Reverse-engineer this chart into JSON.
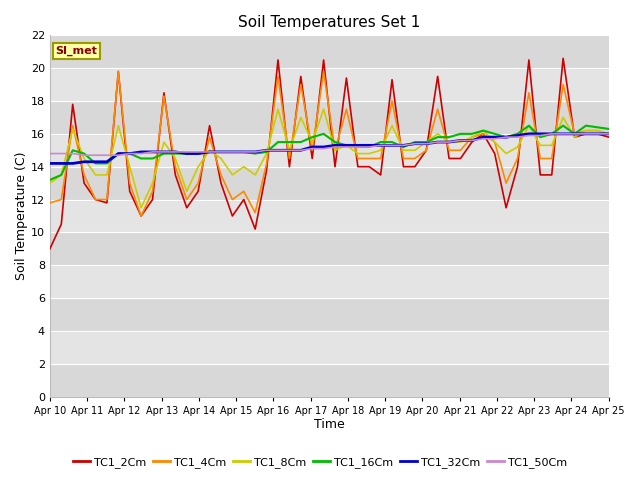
{
  "title": "Soil Temperatures Set 1",
  "xlabel": "Time",
  "ylabel": "Soil Temperature (C)",
  "ylim": [
    0,
    22
  ],
  "yticks": [
    0,
    2,
    4,
    6,
    8,
    10,
    12,
    14,
    16,
    18,
    20,
    22
  ],
  "annotation_text": "SI_met",
  "annotation_bg": "#ffffaa",
  "annotation_border": "#999900",
  "series_colors": {
    "TC1_2Cm": "#cc0000",
    "TC1_4Cm": "#ff8800",
    "TC1_8Cm": "#cccc00",
    "TC1_16Cm": "#00bb00",
    "TC1_32Cm": "#0000cc",
    "TC1_50Cm": "#cc88cc"
  },
  "line_widths": {
    "TC1_2Cm": 1.2,
    "TC1_4Cm": 1.2,
    "TC1_8Cm": 1.2,
    "TC1_16Cm": 1.5,
    "TC1_32Cm": 2.0,
    "TC1_50Cm": 1.2
  },
  "x_labels": [
    "Apr 10",
    "Apr 11",
    "Apr 12",
    "Apr 13",
    "Apr 14",
    "Apr 15",
    "Apr 16",
    "Apr 17",
    "Apr 18",
    "Apr 19",
    "Apr 20",
    "Apr 21",
    "Apr 22",
    "Apr 23",
    "Apr 24",
    "Apr 25"
  ],
  "TC1_2Cm": [
    9.0,
    10.5,
    17.8,
    13.0,
    12.0,
    11.8,
    19.8,
    12.5,
    11.0,
    12.0,
    18.5,
    13.5,
    11.5,
    12.5,
    16.5,
    13.0,
    11.0,
    12.0,
    10.2,
    13.8,
    20.5,
    14.0,
    19.5,
    14.5,
    20.5,
    14.0,
    19.4,
    14.0,
    14.0,
    13.5,
    19.3,
    14.0,
    14.0,
    15.0,
    19.5,
    14.5,
    14.5,
    15.5,
    16.0,
    14.8,
    11.5,
    14.0,
    20.5,
    13.5,
    13.5,
    20.6,
    15.8,
    16.0,
    16.0,
    15.8
  ],
  "TC1_4Cm": [
    11.8,
    12.0,
    16.5,
    13.5,
    12.0,
    12.0,
    19.8,
    13.0,
    11.0,
    12.5,
    18.3,
    14.0,
    12.0,
    13.0,
    15.8,
    13.5,
    12.0,
    12.5,
    11.2,
    14.2,
    19.5,
    14.5,
    19.0,
    15.0,
    19.8,
    15.0,
    17.5,
    14.5,
    14.5,
    14.5,
    18.0,
    14.5,
    14.5,
    15.0,
    17.5,
    15.0,
    15.0,
    15.8,
    16.0,
    15.5,
    13.0,
    14.5,
    18.5,
    14.5,
    14.5,
    19.0,
    16.0,
    16.2,
    16.2,
    16.0
  ],
  "TC1_8Cm": [
    13.0,
    13.5,
    16.3,
    14.5,
    13.5,
    13.5,
    16.5,
    14.0,
    11.5,
    13.0,
    15.5,
    14.5,
    12.5,
    14.0,
    15.0,
    14.5,
    13.5,
    14.0,
    13.5,
    14.8,
    17.5,
    15.0,
    17.0,
    15.5,
    17.5,
    15.0,
    15.3,
    14.8,
    14.8,
    15.0,
    16.5,
    15.0,
    15.0,
    15.5,
    16.0,
    15.5,
    15.5,
    15.8,
    16.2,
    15.5,
    14.8,
    15.2,
    16.5,
    15.3,
    15.3,
    17.0,
    15.8,
    16.2,
    16.2,
    16.0
  ],
  "TC1_16Cm": [
    13.2,
    13.5,
    15.0,
    14.8,
    14.2,
    14.2,
    14.8,
    14.8,
    14.5,
    14.5,
    14.8,
    14.8,
    14.8,
    14.8,
    14.9,
    14.9,
    14.9,
    14.9,
    14.8,
    14.9,
    15.5,
    15.5,
    15.5,
    15.8,
    16.0,
    15.5,
    15.3,
    15.2,
    15.2,
    15.5,
    15.5,
    15.2,
    15.5,
    15.5,
    15.8,
    15.8,
    16.0,
    16.0,
    16.2,
    16.0,
    15.8,
    16.0,
    16.5,
    15.8,
    16.0,
    16.5,
    16.0,
    16.5,
    16.4,
    16.3
  ],
  "TC1_32Cm": [
    14.2,
    14.2,
    14.2,
    14.3,
    14.3,
    14.3,
    14.8,
    14.8,
    14.9,
    14.9,
    14.9,
    14.9,
    14.8,
    14.8,
    14.9,
    14.9,
    14.9,
    14.9,
    14.9,
    15.0,
    15.0,
    15.0,
    15.0,
    15.2,
    15.2,
    15.3,
    15.3,
    15.3,
    15.3,
    15.3,
    15.3,
    15.3,
    15.4,
    15.4,
    15.5,
    15.5,
    15.6,
    15.6,
    15.8,
    15.8,
    15.8,
    15.9,
    16.0,
    16.0,
    16.0,
    16.0,
    16.0,
    16.0,
    16.0,
    16.0
  ],
  "TC1_50Cm": [
    14.8,
    14.8,
    14.8,
    14.7,
    14.7,
    14.7,
    14.7,
    14.8,
    14.8,
    14.9,
    14.9,
    14.9,
    14.9,
    14.9,
    14.9,
    14.9,
    14.9,
    14.9,
    14.9,
    15.0,
    15.0,
    15.0,
    15.0,
    15.1,
    15.1,
    15.2,
    15.2,
    15.2,
    15.2,
    15.3,
    15.3,
    15.3,
    15.4,
    15.4,
    15.5,
    15.5,
    15.6,
    15.6,
    15.7,
    15.7,
    15.8,
    15.8,
    15.9,
    15.9,
    16.0,
    16.0,
    16.0,
    16.0,
    16.0,
    16.0
  ],
  "n_points": 50,
  "band_colors": [
    "#d8d8d8",
    "#e4e4e4"
  ],
  "spine_color": "#bbbbbb",
  "fig_bg": "#ffffff",
  "plot_bg": "#ebebeb"
}
